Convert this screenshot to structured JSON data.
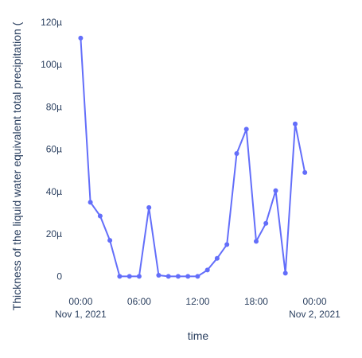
{
  "chart_data": {
    "type": "line",
    "title": "",
    "xlabel": "time",
    "ylabel": "Thickness of the liquid water equivalent total precipitation (",
    "xlim_hours": [
      -1.5,
      26
    ],
    "ylim": [
      -4,
      123
    ],
    "y_ticks": [
      {
        "value": 0,
        "label": "0"
      },
      {
        "value": 20,
        "label": "20µ"
      },
      {
        "value": 40,
        "label": "40µ"
      },
      {
        "value": 60,
        "label": "60µ"
      },
      {
        "value": 80,
        "label": "80µ"
      },
      {
        "value": 100,
        "label": "100µ"
      },
      {
        "value": 120,
        "label": "120µ"
      }
    ],
    "x_ticks": [
      {
        "hour": 0,
        "label": "00:00",
        "sublabel": "Nov 1, 2021"
      },
      {
        "hour": 6,
        "label": "06:00",
        "sublabel": ""
      },
      {
        "hour": 12,
        "label": "12:00",
        "sublabel": ""
      },
      {
        "hour": 18,
        "label": "18:00",
        "sublabel": ""
      },
      {
        "hour": 24,
        "label": "00:00",
        "sublabel": "Nov 2, 2021"
      }
    ],
    "series": [
      {
        "color": "#636efa",
        "x": [
          "00:00",
          "01:00",
          "02:00",
          "03:00",
          "04:00",
          "05:00",
          "06:00",
          "07:00",
          "08:00",
          "09:00",
          "10:00",
          "11:00",
          "12:00",
          "13:00",
          "14:00",
          "15:00",
          "16:00",
          "17:00",
          "18:00",
          "19:00",
          "20:00",
          "21:00",
          "22:00",
          "23:00"
        ],
        "x_hours": [
          0,
          1,
          2,
          3,
          4,
          5,
          6,
          7,
          8,
          9,
          10,
          11,
          12,
          13,
          14,
          15,
          16,
          17,
          18,
          19,
          20,
          21,
          22,
          23
        ],
        "y": [
          112.5,
          35,
          28.5,
          17,
          0,
          0,
          0,
          32.5,
          0.5,
          0,
          0,
          0,
          0,
          3,
          8.5,
          15,
          58,
          69.5,
          16.5,
          25,
          40.5,
          1.5,
          72,
          49
        ]
      }
    ]
  }
}
